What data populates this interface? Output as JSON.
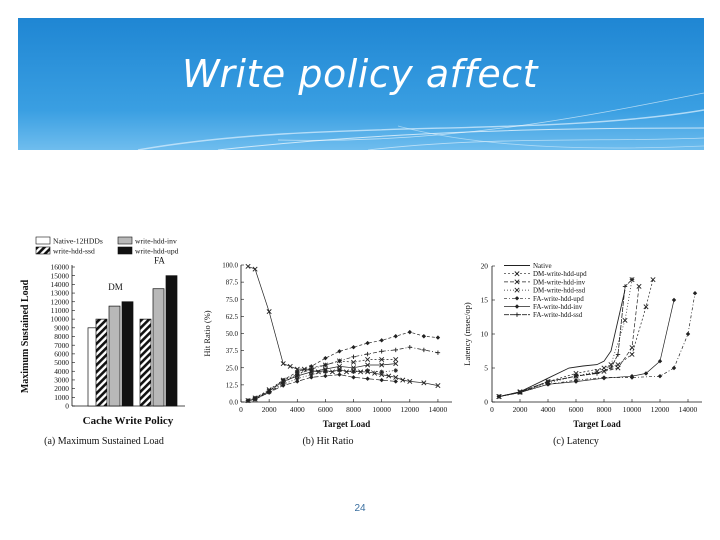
{
  "slide": {
    "title": "Write policy affect",
    "page_number": "24",
    "accent_color": "#2a8fd6"
  },
  "chart_data": [
    {
      "type": "bar",
      "caption": "(a)  Maximum  Sustained  Load",
      "xlabel": "Cache Write Policy",
      "ylabel": "Maximum Sustained Load",
      "ylim": [
        0,
        16000
      ],
      "yticks": [
        "0",
        "1000",
        "2000",
        "3000",
        "4000",
        "5000",
        "6000",
        "7000",
        "8000",
        "9000",
        "10000",
        "11000",
        "12000",
        "13000",
        "14000",
        "15000",
        "16000"
      ],
      "legend": [
        "Native-12HDDs",
        "write-hdd-inv",
        "write-hdd-ssd",
        "write-hdd-upd"
      ],
      "groups": [
        {
          "label": "",
          "bars": [
            {
              "series": "Native-12HDDs",
              "value": 9000
            }
          ]
        },
        {
          "label": "DM",
          "bars": [
            {
              "series": "write-hdd-ssd",
              "value": 10000
            },
            {
              "series": "write-hdd-inv",
              "value": 11500
            },
            {
              "series": "write-hdd-upd",
              "value": 12000
            }
          ]
        },
        {
          "label": "FA",
          "bars": [
            {
              "series": "write-hdd-ssd",
              "value": 10000
            },
            {
              "series": "write-hdd-inv",
              "value": 13500
            },
            {
              "series": "write-hdd-upd",
              "value": 15000
            }
          ]
        }
      ]
    },
    {
      "type": "line",
      "caption": "(b)  Hit  Ratio",
      "xlabel": "Target Load",
      "ylabel": "Hit Ratio (%)",
      "xlim": [
        0,
        15000
      ],
      "ylim": [
        0,
        100
      ],
      "xticks": [
        0,
        2000,
        4000,
        6000,
        8000,
        10000,
        12000,
        14000
      ],
      "yticks": [
        "0.0",
        "12.5",
        "25.0",
        "37.5",
        "50.0",
        "62.5",
        "75.0",
        "87.5",
        "100.0"
      ],
      "series": [
        {
          "marker": "x",
          "x": [
            500,
            1000,
            2000,
            3000,
            3500,
            4000,
            4500,
            5000,
            5500,
            6000,
            6500,
            7000,
            7500,
            8000,
            8500,
            9000,
            9500,
            10000,
            10500,
            11000,
            11500,
            12000,
            13000,
            14000
          ],
          "y": [
            99,
            97,
            66,
            28,
            26,
            24,
            24,
            23,
            22,
            23,
            22,
            24,
            22,
            23,
            22,
            22,
            21,
            20,
            19,
            18,
            16,
            15,
            14,
            12
          ]
        },
        {
          "marker": "diamond",
          "x": [
            500,
            1000,
            2000,
            3000,
            4000,
            5000,
            6000,
            7000,
            8000,
            9000,
            10000,
            11000,
            12000,
            13000,
            14000
          ],
          "y": [
            1,
            3,
            8,
            16,
            22,
            26,
            32,
            37,
            40,
            43,
            45,
            48,
            51,
            48,
            47
          ]
        },
        {
          "marker": "plus",
          "x": [
            500,
            1000,
            2000,
            3000,
            4000,
            5000,
            6000,
            7000,
            8000,
            9000,
            10000,
            11000,
            12000,
            13000,
            14000
          ],
          "y": [
            1,
            2,
            7,
            14,
            20,
            24,
            27,
            30,
            33,
            35,
            37,
            38,
            40,
            38,
            36
          ]
        },
        {
          "marker": "x",
          "x": [
            500,
            1000,
            2000,
            3000,
            4000,
            5000,
            6000,
            7000,
            8000,
            9000,
            10000,
            11000
          ],
          "y": [
            1,
            3,
            9,
            16,
            20,
            25,
            27,
            30,
            29,
            31,
            31,
            31
          ]
        },
        {
          "marker": "x",
          "x": [
            500,
            1000,
            2000,
            3000,
            4000,
            5000,
            6000,
            7000,
            8000,
            9000,
            10000,
            11000
          ],
          "y": [
            1,
            2,
            8,
            15,
            19,
            22,
            24,
            26,
            25,
            27,
            27,
            28
          ]
        },
        {
          "marker": "star",
          "x": [
            500,
            1000,
            2000,
            3000,
            4000,
            5000,
            6000,
            7000,
            8000,
            9000,
            10000,
            11000
          ],
          "y": [
            1,
            2,
            7,
            13,
            17,
            20,
            22,
            23,
            22,
            23,
            22,
            23
          ]
        },
        {
          "marker": "diamond",
          "x": [
            500,
            1000,
            2000,
            3000,
            4000,
            5000,
            6000,
            7000,
            8000,
            9000,
            10000,
            11000
          ],
          "y": [
            1,
            2,
            7,
            12,
            15,
            18,
            19,
            20,
            18,
            17,
            16,
            15
          ]
        }
      ]
    },
    {
      "type": "line",
      "caption": "(c)  Latency",
      "xlabel": "Target Load",
      "ylabel": "Latency (msec/op)",
      "xlim": [
        0,
        15000
      ],
      "ylim": [
        0,
        20
      ],
      "xticks": [
        0,
        2000,
        4000,
        6000,
        8000,
        10000,
        12000,
        14000
      ],
      "yticks": [
        "0",
        "5",
        "10",
        "15",
        "20"
      ],
      "legend": [
        "Native",
        "DM-write-hdd-upd",
        "DM-write-hdd-inv",
        "DM-write-hdd-ssd",
        "FA-write-hdd-upd",
        "FA-write-hdd-inv",
        "FA-write-hdd-ssd"
      ],
      "series": [
        {
          "name": "Native",
          "x": [
            500,
            2000,
            4000,
            5500,
            6500,
            7500,
            8000,
            8500,
            9500
          ],
          "y": [
            0.8,
            1.5,
            3.5,
            5.0,
            5.3,
            5.5,
            6.0,
            7.5,
            16.5
          ]
        },
        {
          "name": "DM-write-hdd-upd",
          "x": [
            500,
            2000,
            4000,
            6000,
            8000,
            9000,
            10000,
            11000,
            11500
          ],
          "y": [
            0.8,
            1.5,
            3.0,
            4.2,
            5.0,
            5.5,
            7.0,
            14.0,
            18.0
          ]
        },
        {
          "name": "DM-write-hdd-inv",
          "x": [
            500,
            2000,
            4000,
            6000,
            8000,
            9000,
            10000,
            10500
          ],
          "y": [
            0.8,
            1.5,
            3.0,
            3.8,
            4.5,
            5.0,
            8.0,
            17.0
          ]
        },
        {
          "name": "DM-write-hdd-ssd",
          "x": [
            500,
            2000,
            4000,
            6000,
            7500,
            8500,
            9500,
            10000
          ],
          "y": [
            0.8,
            1.4,
            2.8,
            3.8,
            4.5,
            5.5,
            12.0,
            18.0
          ]
        },
        {
          "name": "FA-write-hdd-upd",
          "x": [
            500,
            2000,
            4000,
            6000,
            8000,
            10000,
            12000,
            13000,
            14000,
            14500
          ],
          "y": [
            0.8,
            1.4,
            2.6,
            3.2,
            3.6,
            3.6,
            3.8,
            5.0,
            10.0,
            16.0
          ]
        },
        {
          "name": "FA-write-hdd-inv",
          "x": [
            500,
            2000,
            4000,
            6000,
            8000,
            10000,
            11000,
            12000,
            13000
          ],
          "y": [
            0.8,
            1.4,
            2.6,
            3.0,
            3.5,
            3.8,
            4.2,
            6.0,
            15.0
          ]
        },
        {
          "name": "FA-write-hdd-ssd",
          "x": [
            500,
            2000,
            4000,
            6000,
            7500,
            8500,
            9000,
            9500,
            10000
          ],
          "y": [
            0.8,
            1.4,
            3.0,
            3.8,
            4.2,
            5.0,
            7.0,
            17.0,
            18.0
          ]
        }
      ]
    }
  ]
}
